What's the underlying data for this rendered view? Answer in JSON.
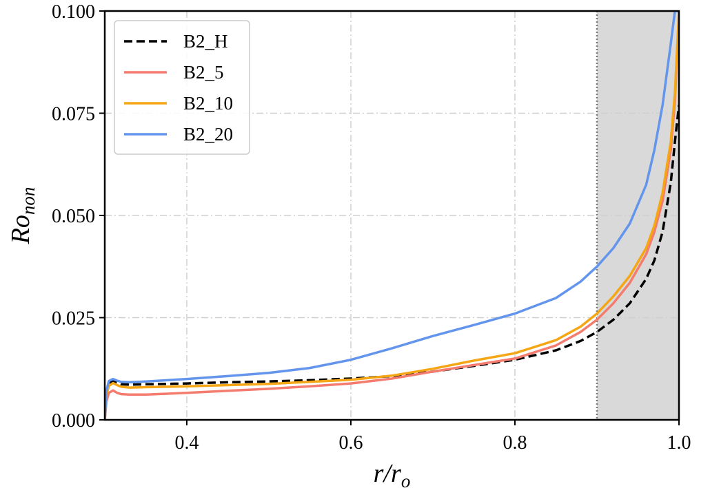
{
  "chart_data": {
    "type": "line",
    "title": "",
    "xlabel": {
      "base": "r/r",
      "sub": "o"
    },
    "ylabel": {
      "base": "Ro",
      "sub": "non"
    },
    "xlim": [
      0.3,
      1.0
    ],
    "ylim": [
      0.0,
      0.1
    ],
    "x_ticks": [
      {
        "value": 0.4,
        "label": "0.4"
      },
      {
        "value": 0.6,
        "label": "0.6"
      },
      {
        "value": 0.8,
        "label": "0.8"
      },
      {
        "value": 1.0,
        "label": "1.0"
      }
    ],
    "y_ticks": [
      {
        "value": 0.0,
        "label": "0.000"
      },
      {
        "value": 0.025,
        "label": "0.025"
      },
      {
        "value": 0.05,
        "label": "0.050"
      },
      {
        "value": 0.075,
        "label": "0.075"
      },
      {
        "value": 0.1,
        "label": "0.100"
      }
    ],
    "grid": true,
    "shaded_region": {
      "x_start": 0.9,
      "x_end": 1.0,
      "color": "#d9d9d9"
    },
    "vline": {
      "x": 0.9,
      "style": "dotted",
      "color": "#777777"
    },
    "legend_position": "top-left",
    "series": [
      {
        "name": "B2_H",
        "color": "#000000",
        "dashed": true,
        "x": [
          0.3,
          0.302,
          0.305,
          0.31,
          0.315,
          0.32,
          0.33,
          0.35,
          0.4,
          0.45,
          0.5,
          0.55,
          0.6,
          0.65,
          0.7,
          0.75,
          0.8,
          0.85,
          0.88,
          0.9,
          0.92,
          0.94,
          0.96,
          0.97,
          0.98,
          0.99,
          0.995,
          1.0
        ],
        "y": [
          0.0,
          0.0065,
          0.0088,
          0.0095,
          0.0091,
          0.0087,
          0.0086,
          0.0087,
          0.0089,
          0.0092,
          0.0094,
          0.0097,
          0.0101,
          0.0107,
          0.0118,
          0.0132,
          0.0147,
          0.017,
          0.0193,
          0.0215,
          0.0245,
          0.0285,
          0.0345,
          0.039,
          0.046,
          0.058,
          0.068,
          0.077
        ]
      },
      {
        "name": "B2_5",
        "color": "#f47c6e",
        "dashed": false,
        "x": [
          0.3,
          0.302,
          0.305,
          0.31,
          0.315,
          0.32,
          0.33,
          0.35,
          0.4,
          0.45,
          0.5,
          0.55,
          0.6,
          0.65,
          0.7,
          0.75,
          0.8,
          0.85,
          0.88,
          0.9,
          0.92,
          0.94,
          0.96,
          0.97,
          0.98,
          0.99,
          0.995,
          1.0
        ],
        "y": [
          0.0,
          0.0045,
          0.0066,
          0.0072,
          0.0066,
          0.0063,
          0.0062,
          0.0062,
          0.0066,
          0.0071,
          0.0076,
          0.0082,
          0.0089,
          0.0101,
          0.0118,
          0.0134,
          0.015,
          0.0182,
          0.0215,
          0.0245,
          0.0285,
          0.0335,
          0.0405,
          0.046,
          0.0535,
          0.066,
          0.078,
          0.1
        ]
      },
      {
        "name": "B2_10",
        "color": "#f5a614",
        "dashed": false,
        "x": [
          0.3,
          0.302,
          0.305,
          0.31,
          0.315,
          0.32,
          0.33,
          0.35,
          0.4,
          0.45,
          0.5,
          0.55,
          0.6,
          0.65,
          0.7,
          0.75,
          0.8,
          0.85,
          0.88,
          0.9,
          0.92,
          0.94,
          0.96,
          0.97,
          0.98,
          0.99,
          0.995,
          1.0
        ],
        "y": [
          0.0,
          0.0062,
          0.0083,
          0.009,
          0.0085,
          0.0081,
          0.0079,
          0.008,
          0.0082,
          0.0085,
          0.0088,
          0.0093,
          0.0098,
          0.0108,
          0.0125,
          0.0145,
          0.0163,
          0.0195,
          0.0228,
          0.026,
          0.0302,
          0.0352,
          0.042,
          0.0475,
          0.0555,
          0.068,
          0.08,
          0.1
        ]
      },
      {
        "name": "B2_20",
        "color": "#6495ed",
        "dashed": false,
        "x": [
          0.3,
          0.302,
          0.305,
          0.31,
          0.315,
          0.32,
          0.33,
          0.35,
          0.4,
          0.45,
          0.5,
          0.55,
          0.6,
          0.65,
          0.7,
          0.75,
          0.8,
          0.85,
          0.88,
          0.9,
          0.92,
          0.94,
          0.96,
          0.97,
          0.98,
          0.99,
          0.995,
          1.0
        ],
        "y": [
          0.0,
          0.0072,
          0.0095,
          0.01,
          0.0096,
          0.0093,
          0.0092,
          0.0094,
          0.01,
          0.0107,
          0.0115,
          0.0127,
          0.0147,
          0.0175,
          0.0205,
          0.0232,
          0.026,
          0.0298,
          0.0338,
          0.0375,
          0.042,
          0.048,
          0.0575,
          0.066,
          0.077,
          0.092,
          0.1,
          0.1
        ]
      }
    ]
  }
}
